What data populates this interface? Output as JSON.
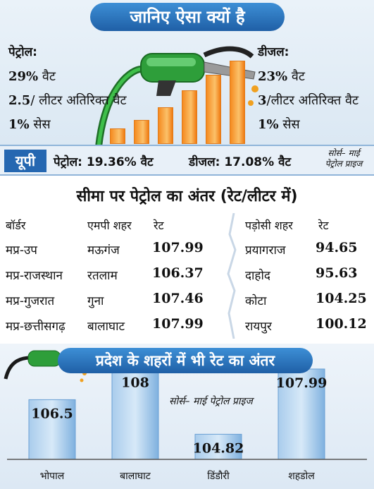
{
  "section1": {
    "title": "जानिए ऐसा क्यों है",
    "petrol": {
      "heading": "पेट्रोल:",
      "lines": [
        {
          "big": "29%",
          "rest": " वैट"
        },
        {
          "big": "2.5",
          "rest": "/ लीटर अतिरिक्त वैट"
        },
        {
          "big": "1%",
          "rest": " सेस"
        }
      ]
    },
    "diesel": {
      "heading": "डीजल:",
      "lines": [
        {
          "big": "23%",
          "rest": " वैट"
        },
        {
          "big": "3",
          "rest": "/लीटर अतिरिक्त वैट"
        },
        {
          "big": "1%",
          "rest": " सेस"
        }
      ]
    },
    "colors": {
      "title_bg": "#2a73bf",
      "bars": "#f58a1f",
      "nozzle": "#2e9e3a"
    },
    "icon": "fuel-nozzle-icon"
  },
  "up_strip": {
    "label": "यूपी",
    "petrol": "पेट्रोल: 19.36% वैट",
    "diesel": "डीजल: 17.08% वैट",
    "source_line1": "सोर्स– माई",
    "source_line2": "पेट्रोल प्राइज"
  },
  "border": {
    "title": "सीमा पर पेट्रोल का अंतर (रेट/लीटर में)",
    "headers": {
      "border": "बॉर्डर",
      "mp_city": "एमपी शहर",
      "rate": "रेट",
      "neighbor_city": "पड़ोसी शहर",
      "neighbor_rate": "रेट"
    },
    "rows": [
      {
        "border": "मप्र-उप",
        "mp_city": "मऊगंज",
        "rate": "107.99",
        "neighbor_city": "प्रयागराज",
        "neighbor_rate": "94.65"
      },
      {
        "border": "मप्र-राजस्थान",
        "mp_city": "रतलाम",
        "rate": "106.37",
        "neighbor_city": "दाहोद",
        "neighbor_rate": "95.63"
      },
      {
        "border": "मप्र-गुजरात",
        "mp_city": "गुना",
        "rate": "107.46",
        "neighbor_city": "कोटा",
        "neighbor_rate": "104.25"
      },
      {
        "border": "मप्र-छत्तीसगढ़",
        "mp_city": "बालाघाट",
        "rate": "107.99",
        "neighbor_city": "रायपुर",
        "neighbor_rate": "100.12"
      }
    ]
  },
  "section3": {
    "title": "प्रदेश के शहरों में भी रेट का अंतर",
    "source": "सोर्स– माई पेट्रोल प्राइज"
  },
  "chart_data": {
    "type": "bar",
    "title": "प्रदेश के शहरों में भी रेट का अंतर",
    "categories": [
      "भोपाल",
      "बालाघाट",
      "डिंडौरी",
      "शहडोल"
    ],
    "values": [
      106.5,
      108,
      104.82,
      107.99
    ],
    "value_labels": [
      "106.5",
      "108",
      "104.82",
      "107.99"
    ],
    "ylim": [
      103.6,
      108.4
    ],
    "grid": false,
    "legend": "none",
    "bar_color": "#5b9bd5"
  }
}
